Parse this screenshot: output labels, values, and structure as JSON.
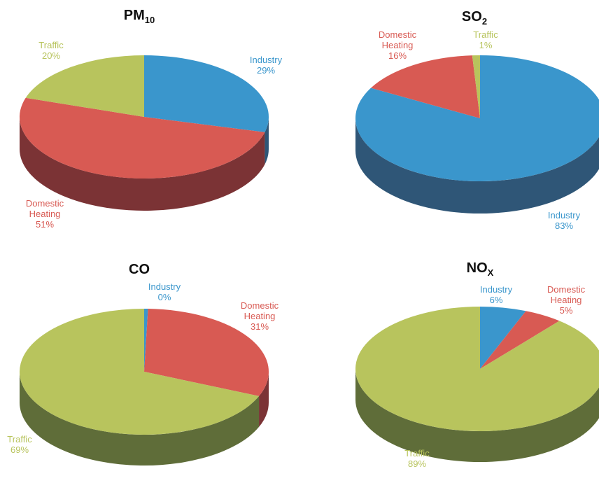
{
  "colors": {
    "industry": "#3a96cc",
    "industry_side": "#2f5677",
    "domestic": "#d85a53",
    "domestic_side": "#7b3335",
    "traffic": "#b8c45d",
    "traffic_side": "#5f6d39"
  },
  "chart_data": [
    {
      "type": "pie",
      "title_main": "PM",
      "title_sub": "10",
      "slices": [
        {
          "key": "industry",
          "label_lines": [
            "Industry"
          ],
          "value": 29,
          "pct_text": "29%"
        },
        {
          "key": "domestic",
          "label_lines": [
            "Domestic",
            "Heating"
          ],
          "value": 51,
          "pct_text": "51%"
        },
        {
          "key": "traffic",
          "label_lines": [
            "Traffic"
          ],
          "value": 20,
          "pct_text": "20%"
        }
      ]
    },
    {
      "type": "pie",
      "title_main": "SO",
      "title_sub": "2",
      "slices": [
        {
          "key": "industry",
          "label_lines": [
            "Industry"
          ],
          "value": 83,
          "pct_text": "83%"
        },
        {
          "key": "domestic",
          "label_lines": [
            "Domestic",
            "Heating"
          ],
          "value": 16,
          "pct_text": "16%"
        },
        {
          "key": "traffic",
          "label_lines": [
            "Traffic"
          ],
          "value": 1,
          "pct_text": "1%"
        }
      ]
    },
    {
      "type": "pie",
      "title_main": "CO",
      "title_sub": "",
      "slices": [
        {
          "key": "industry",
          "label_lines": [
            "Industry"
          ],
          "value": 0.5,
          "pct_text": "0%"
        },
        {
          "key": "domestic",
          "label_lines": [
            "Domestic",
            "Heating"
          ],
          "value": 31,
          "pct_text": "31%"
        },
        {
          "key": "traffic",
          "label_lines": [
            "Traffic"
          ],
          "value": 69,
          "pct_text": "69%"
        }
      ]
    },
    {
      "type": "pie",
      "title_main": "NO",
      "title_sub": "X",
      "slices": [
        {
          "key": "industry",
          "label_lines": [
            "Industry"
          ],
          "value": 6,
          "pct_text": "6%"
        },
        {
          "key": "domestic",
          "label_lines": [
            "Domestic",
            "Heating"
          ],
          "value": 5,
          "pct_text": "5%"
        },
        {
          "key": "traffic",
          "label_lines": [
            "Traffic"
          ],
          "value": 89,
          "pct_text": "89%"
        }
      ]
    }
  ]
}
